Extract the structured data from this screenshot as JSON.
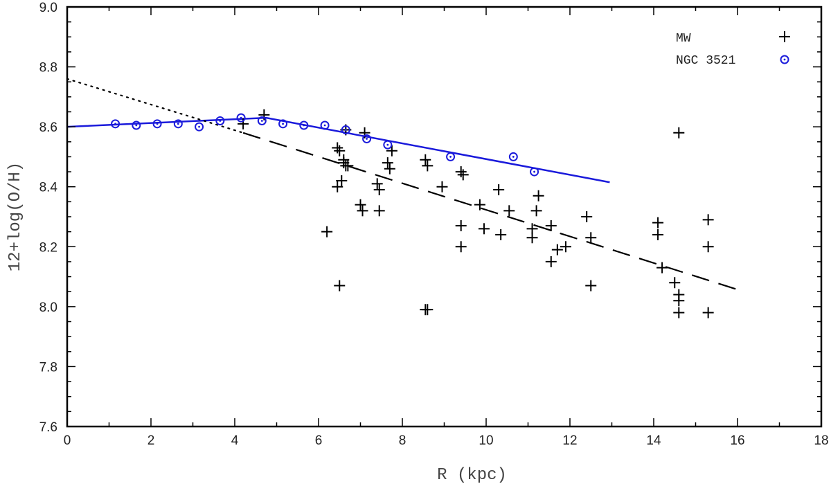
{
  "chart_data": {
    "type": "scatter",
    "xlabel": "R   (kpc)",
    "ylabel": "12+log(O/H)",
    "xlim": [
      0,
      18
    ],
    "ylim": [
      7.6,
      9.0
    ],
    "x_ticks": [
      0,
      2,
      4,
      6,
      8,
      10,
      12,
      14,
      16,
      18
    ],
    "x_tick_labels": [
      "0",
      "2",
      "4",
      "6",
      "8",
      "10",
      "12",
      "14",
      "16",
      "18"
    ],
    "y_ticks": [
      7.6,
      7.8,
      8.0,
      8.2,
      8.4,
      8.6,
      8.8,
      9.0
    ],
    "y_tick_labels": [
      "7.6",
      "7.8",
      "8.0",
      "8.2",
      "8.4",
      "8.6",
      "8.8",
      "9.0"
    ],
    "grid": false,
    "legend_position": "top-right",
    "colors": {
      "mw": "#000000",
      "ngc": "#1a1adb"
    },
    "series": [
      {
        "name": "MW",
        "marker": "plus",
        "points": [
          [
            4.2,
            8.61
          ],
          [
            4.7,
            8.64
          ],
          [
            6.2,
            8.25
          ],
          [
            6.5,
            8.07
          ],
          [
            6.45,
            8.4
          ],
          [
            6.55,
            8.42
          ],
          [
            6.45,
            8.53
          ],
          [
            6.5,
            8.52
          ],
          [
            6.6,
            8.49
          ],
          [
            6.65,
            8.47
          ],
          [
            6.6,
            8.48
          ],
          [
            6.7,
            8.47
          ],
          [
            6.65,
            8.59
          ],
          [
            7.0,
            8.34
          ],
          [
            7.05,
            8.32
          ],
          [
            7.1,
            8.58
          ],
          [
            7.4,
            8.41
          ],
          [
            7.45,
            8.39
          ],
          [
            7.45,
            8.32
          ],
          [
            7.65,
            8.48
          ],
          [
            7.7,
            8.46
          ],
          [
            7.75,
            8.52
          ],
          [
            8.55,
            7.99
          ],
          [
            8.6,
            7.99
          ],
          [
            8.55,
            8.49
          ],
          [
            8.6,
            8.47
          ],
          [
            8.95,
            8.4
          ],
          [
            9.4,
            8.27
          ],
          [
            9.4,
            8.2
          ],
          [
            9.4,
            8.45
          ],
          [
            9.45,
            8.44
          ],
          [
            9.85,
            8.34
          ],
          [
            9.95,
            8.26
          ],
          [
            10.3,
            8.39
          ],
          [
            10.35,
            8.24
          ],
          [
            10.55,
            8.32
          ],
          [
            11.1,
            8.26
          ],
          [
            11.1,
            8.23
          ],
          [
            11.2,
            8.32
          ],
          [
            11.25,
            8.37
          ],
          [
            11.55,
            8.15
          ],
          [
            11.55,
            8.27
          ],
          [
            11.7,
            8.19
          ],
          [
            11.9,
            8.2
          ],
          [
            12.4,
            8.3
          ],
          [
            12.5,
            8.07
          ],
          [
            12.5,
            8.23
          ],
          [
            14.1,
            8.28
          ],
          [
            14.1,
            8.24
          ],
          [
            14.2,
            8.13
          ],
          [
            14.5,
            8.08
          ],
          [
            14.6,
            8.04
          ],
          [
            14.6,
            8.02
          ],
          [
            14.6,
            7.98
          ],
          [
            14.6,
            8.58
          ],
          [
            15.3,
            8.29
          ],
          [
            15.3,
            8.2
          ],
          [
            15.3,
            7.98
          ]
        ]
      },
      {
        "name": "NGC 3521",
        "marker": "circle-dot",
        "points": [
          [
            1.15,
            8.61
          ],
          [
            1.65,
            8.605
          ],
          [
            2.15,
            8.61
          ],
          [
            2.65,
            8.61
          ],
          [
            3.15,
            8.6
          ],
          [
            3.65,
            8.62
          ],
          [
            4.15,
            8.63
          ],
          [
            4.65,
            8.62
          ],
          [
            5.15,
            8.61
          ],
          [
            5.65,
            8.605
          ],
          [
            6.15,
            8.605
          ],
          [
            6.65,
            8.59
          ],
          [
            7.15,
            8.56
          ],
          [
            7.65,
            8.54
          ],
          [
            9.15,
            8.5
          ],
          [
            10.65,
            8.5
          ],
          [
            11.15,
            8.45
          ]
        ]
      }
    ],
    "lines": [
      {
        "style": "solid-blue",
        "points": [
          [
            0,
            8.6
          ],
          [
            4.75,
            8.63
          ],
          [
            12.95,
            8.415
          ]
        ]
      },
      {
        "style": "dotted-black",
        "points": [
          [
            0,
            8.76
          ],
          [
            4.2,
            8.58
          ]
        ]
      },
      {
        "style": "dashed-black",
        "points": [
          [
            4.2,
            8.58
          ],
          [
            16.0,
            8.057
          ]
        ]
      }
    ]
  }
}
